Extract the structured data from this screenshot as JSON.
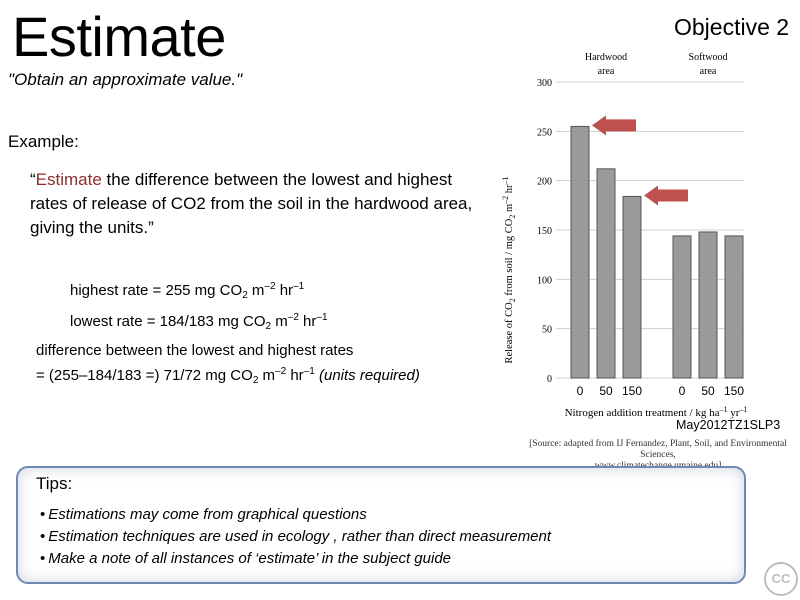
{
  "title": "Estimate",
  "objective": "Objective 2",
  "definition": "\"Obtain an approximate value.\"",
  "example_label": "Example:",
  "question": {
    "open_quote": "“",
    "highlight": "Estimate",
    "rest": " the difference between the lowest and highest rates of release of CO2 from the soil in the hardwood area, giving the units.”"
  },
  "calc": {
    "highest": {
      "lead": "highest rate = 255 mg CO",
      "sub": "2",
      "mid": " m",
      "sup1": "–2",
      "mid2": " hr",
      "sup2": "–1"
    },
    "lowest": {
      "lead": "lowest rate = 184/183 mg CO",
      "sub": "2",
      "mid": " m",
      "sup1": "–2",
      "mid2": " hr",
      "sup2": "–1"
    }
  },
  "difference": {
    "line1": "difference between the lowest and highest rates",
    "lead": "= (255–184/183 =) 71/72 mg CO",
    "sub": "2",
    "mid": " m",
    "sup1": "–2",
    "mid2": " hr",
    "sup2": "–1",
    "note": " (units required)"
  },
  "reference": "May2012TZ1SLP3",
  "source": {
    "line1": "[Source: adapted from IJ Fernandez, Plant, Soil, and Environmental Sciences,",
    "line2": "www.climatechange.umaine.edu]"
  },
  "tips": {
    "title": "Tips:",
    "items": [
      "Estimations may come from graphical questions",
      "Estimation techniques are used in ecology , rather than direct measurement",
      "Make a note of all instances of ‘estimate’ in the subject guide"
    ]
  },
  "cc_badge": "CC",
  "colors": {
    "arrow": "#c0504d",
    "bar": "#9a9a9a",
    "tips_border": "#6f89b0"
  },
  "chart_data": {
    "type": "bar",
    "groups": [
      {
        "label_line1": "Hardwood",
        "label_line2": "area"
      },
      {
        "label_line1": "Softwood",
        "label_line2": "area"
      }
    ],
    "categories": [
      "0",
      "50",
      "150",
      "0",
      "50",
      "150"
    ],
    "values": [
      255,
      212,
      184,
      144,
      148,
      144
    ],
    "ylabel_text": "Release of CO",
    "ylabel_sub": "2",
    "ylabel_units": " from soil / mg CO",
    "ylabel_units_sub": "2",
    "ylabel_units_tail": " m",
    "ylabel_sup1": "–2",
    "ylabel_tail": " hr",
    "ylabel_sup2": "–1",
    "xlabel": "Nitrogen addition treatment / kg ha",
    "xlabel_sup1": "–1",
    "xlabel_tail": " yr",
    "xlabel_sup2": "–1",
    "yticks": [
      0,
      50,
      100,
      150,
      200,
      250,
      300
    ],
    "ylim": [
      0,
      300
    ],
    "grid": true,
    "arrows_at_values": [
      255,
      184
    ]
  }
}
